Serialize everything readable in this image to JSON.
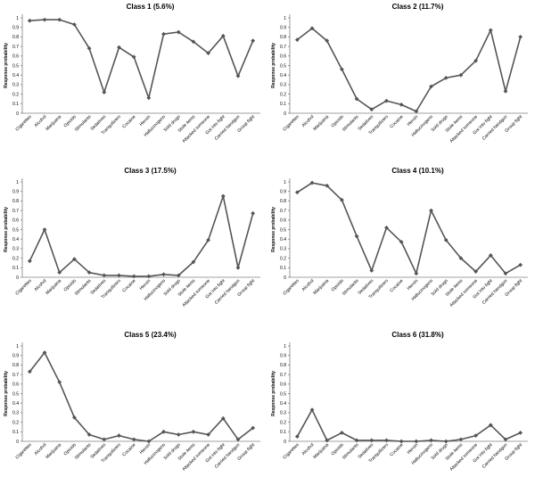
{
  "chart_data": [
    {
      "type": "line",
      "title": "Class 1 (5.6%)",
      "ylabel": "Response probability",
      "ylim": [
        0,
        1
      ],
      "yticks": [
        "0",
        "0.1",
        "0.2",
        "0.3",
        "0.4",
        "0.5",
        "0.6",
        "0.7",
        "0.8",
        "0.9",
        "1"
      ],
      "categories": [
        "Cigarettes",
        "Alcohol",
        "Marijuana",
        "Opioids",
        "Stimulants",
        "Sedatives",
        "Tranquilizers",
        "Cocaine",
        "Heroin",
        "Hallucinogens",
        "Sold drugs",
        "Stole items",
        "Attacked someone",
        "Got into fight",
        "Carried handgun",
        "Group fight"
      ],
      "values": [
        0.97,
        0.98,
        0.98,
        0.93,
        0.68,
        0.22,
        0.69,
        0.59,
        0.16,
        0.83,
        0.85,
        0.75,
        0.63,
        0.81,
        0.39,
        0.76
      ]
    },
    {
      "type": "line",
      "title": "Class 2 (11.7%)",
      "ylabel": "Response probability",
      "ylim": [
        0,
        1
      ],
      "yticks": [
        "0",
        "0.1",
        "0.2",
        "0.3",
        "0.4",
        "0.5",
        "0.6",
        "0.7",
        "0.8",
        "0.9",
        "1"
      ],
      "categories": [
        "Cigarettes",
        "Alcohol",
        "Marijuana",
        "Opioids",
        "Stimulants",
        "Sedatives",
        "Tranquilizers",
        "Cocaine",
        "Heroin",
        "Hallucinogens",
        "Sold drugs",
        "Stole items",
        "Attacked someone",
        "Got into fight",
        "Carried handgun",
        "Group fight"
      ],
      "values": [
        0.77,
        0.89,
        0.76,
        0.46,
        0.15,
        0.04,
        0.13,
        0.09,
        0.02,
        0.28,
        0.37,
        0.4,
        0.55,
        0.87,
        0.23,
        0.8
      ]
    },
    {
      "type": "line",
      "title": "Class 3 (17.5%)",
      "ylabel": "Response probability",
      "ylim": [
        0,
        1
      ],
      "yticks": [
        "0",
        "0.1",
        "0.2",
        "0.3",
        "0.4",
        "0.5",
        "0.6",
        "0.7",
        "0.8",
        "0.9",
        "1"
      ],
      "categories": [
        "Cigarettes",
        "Alcohol",
        "Marijuana",
        "Opioids",
        "Stimulants",
        "Sedatives",
        "Tranquilizers",
        "Cocaine",
        "Heroin",
        "Hallucinogens",
        "Sold drugs",
        "Stole items",
        "Attacked someone",
        "Got into fight",
        "Carried handgun",
        "Group fight"
      ],
      "values": [
        0.17,
        0.5,
        0.05,
        0.19,
        0.05,
        0.02,
        0.02,
        0.01,
        0.01,
        0.03,
        0.02,
        0.16,
        0.39,
        0.85,
        0.1,
        0.67
      ]
    },
    {
      "type": "line",
      "title": "Class 4 (10.1%)",
      "ylabel": "Response probability",
      "ylim": [
        0,
        1
      ],
      "yticks": [
        "0",
        "0.1",
        "0.2",
        "0.3",
        "0.4",
        "0.5",
        "0.6",
        "0.7",
        "0.8",
        "0.9",
        "1"
      ],
      "categories": [
        "Cigarettes",
        "Alcohol",
        "Marijuana",
        "Opioids",
        "Stimulants",
        "Sedatives",
        "Tranquilizers",
        "Cocaine",
        "Heroin",
        "Hallucinogens",
        "Sold drugs",
        "Stole items",
        "Attacked someone",
        "Got into fight",
        "Carried handgun",
        "Group fight"
      ],
      "values": [
        0.89,
        0.99,
        0.96,
        0.81,
        0.43,
        0.07,
        0.52,
        0.37,
        0.04,
        0.7,
        0.39,
        0.2,
        0.06,
        0.23,
        0.04,
        0.13
      ]
    },
    {
      "type": "line",
      "title": "Class 5 (23.4%)",
      "ylabel": "Response probability",
      "ylim": [
        0,
        1
      ],
      "yticks": [
        "0",
        "0.1",
        "0.2",
        "0.3",
        "0.4",
        "0.5",
        "0.6",
        "0.7",
        "0.8",
        "0.9",
        "1"
      ],
      "categories": [
        "Cigarettes",
        "Alcohol",
        "Marijuana",
        "Opioids",
        "Stimulants",
        "Sedatives",
        "Tranquilizers",
        "Cocaine",
        "Heroin",
        "Hallucinogens",
        "Sold drugs",
        "Stole items",
        "Attacked someone",
        "Got into fight",
        "Carried handgun",
        "Group fight"
      ],
      "values": [
        0.73,
        0.93,
        0.62,
        0.25,
        0.07,
        0.02,
        0.06,
        0.02,
        0.0,
        0.1,
        0.07,
        0.1,
        0.07,
        0.24,
        0.02,
        0.14
      ]
    },
    {
      "type": "line",
      "title": "Class 6 (31.8%)",
      "ylabel": "Response probability",
      "ylim": [
        0,
        1
      ],
      "yticks": [
        "0",
        "0.1",
        "0.2",
        "0.3",
        "0.4",
        "0.5",
        "0.6",
        "0.7",
        "0.8",
        "0.9",
        "1"
      ],
      "categories": [
        "Cigarettes",
        "Alcohol",
        "Marijuana",
        "Opioids",
        "Stimulants",
        "Sedatives",
        "Tranquilizers",
        "Cocaine",
        "Heroin",
        "Hallucinogens",
        "Sold drugs",
        "Stole items",
        "Attacked someone",
        "Got into fight",
        "Carried handgun",
        "Group fight"
      ],
      "values": [
        0.05,
        0.33,
        0.01,
        0.09,
        0.01,
        0.01,
        0.01,
        0.0,
        0.0,
        0.01,
        0.0,
        0.02,
        0.06,
        0.17,
        0.02,
        0.09
      ]
    }
  ]
}
